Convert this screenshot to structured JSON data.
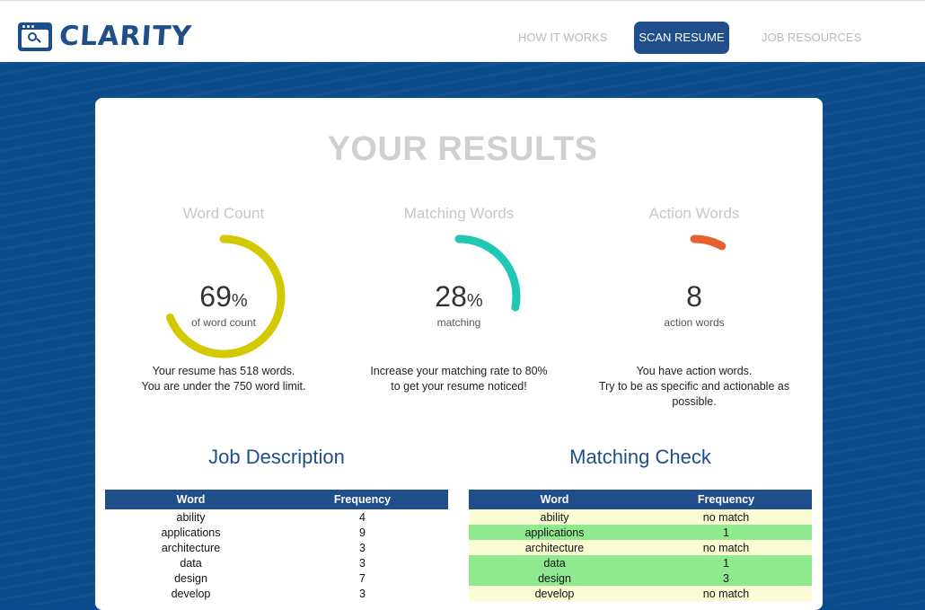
{
  "app": {
    "name": "CLARITY"
  },
  "nav": {
    "how": "HOW IT WORKS",
    "scan": "SCAN RESUME",
    "jobs": "JOB RESOURCES"
  },
  "results": {
    "title": "YOUR RESULTS"
  },
  "metrics": {
    "word_count": {
      "title": "Word Count",
      "value": "69",
      "unit": "%",
      "sub": "of word count",
      "note1": "Your resume has 518 words.",
      "note2": "You are under the 750 word limit.",
      "progress": 0.69,
      "color": "#d4c900"
    },
    "matching": {
      "title": "Matching Words",
      "value": "28",
      "unit": "%",
      "sub": "matching",
      "note1": "Increase your matching rate to 80%",
      "note2": "to get your resume noticed!",
      "progress": 0.28,
      "color": "#1fc7b4"
    },
    "action": {
      "title": "Action Words",
      "value": "8",
      "sub": "action words",
      "note1": "You have action words.",
      "note2": "Try to be as specific and actionable as",
      "note3": "possible.",
      "progress": 0.08,
      "color": "#e5602c"
    }
  },
  "job_description": {
    "title": "Job Description",
    "headers": [
      "Word",
      "Frequency"
    ],
    "rows": [
      [
        "ability",
        "4"
      ],
      [
        "applications",
        "9"
      ],
      [
        "architecture",
        "3"
      ],
      [
        "data",
        "3"
      ],
      [
        "design",
        "7"
      ],
      [
        "develop",
        "3"
      ]
    ]
  },
  "matching_check": {
    "title": "Matching Check",
    "headers": [
      "Word",
      "Frequency"
    ],
    "rows": [
      [
        "ability",
        "no match"
      ],
      [
        "applications",
        "1"
      ],
      [
        "architecture",
        "no match"
      ],
      [
        "data",
        "1"
      ],
      [
        "design",
        "3"
      ],
      [
        "develop",
        "no match"
      ]
    ]
  }
}
